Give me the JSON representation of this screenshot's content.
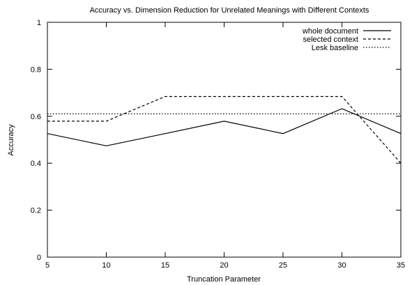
{
  "chart_data": {
    "type": "line",
    "title": "Accuracy vs. Dimension Reduction for Unrelated Meanings with Different Contexts",
    "xlabel": "Truncation Parameter",
    "ylabel": "Accuracy",
    "xlim": [
      5,
      35
    ],
    "ylim": [
      0,
      1
    ],
    "x_ticks": [
      5,
      10,
      15,
      20,
      25,
      30,
      35
    ],
    "y_ticks": [
      0,
      0.2,
      0.4,
      0.6,
      0.8,
      1
    ],
    "y_tick_labels": [
      "0",
      "0.2",
      "0.4",
      "0.6",
      "0.8",
      "1"
    ],
    "grid": false,
    "legend_position": "top-right",
    "series": [
      {
        "name": "whole document",
        "style": "solid",
        "x": [
          5,
          10,
          15,
          20,
          25,
          30,
          35
        ],
        "y": [
          0.526,
          0.474,
          0.526,
          0.579,
          0.526,
          0.632,
          0.526
        ]
      },
      {
        "name": "selected context",
        "style": "dashed",
        "x": [
          5,
          10,
          15,
          20,
          25,
          30,
          35
        ],
        "y": [
          0.579,
          0.579,
          0.684,
          0.684,
          0.684,
          0.684,
          0.4
        ]
      },
      {
        "name": "Lesk baseline",
        "style": "dotted",
        "x": [
          5,
          35
        ],
        "y": [
          0.61,
          0.61
        ]
      }
    ]
  }
}
